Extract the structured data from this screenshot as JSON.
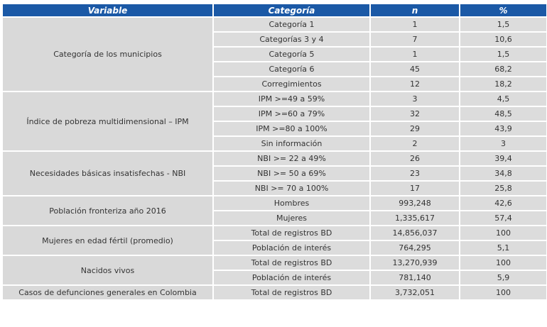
{
  "headers": [
    "Variable",
    "Categoría",
    "n",
    "%"
  ],
  "groups": [
    {
      "variable": "Categoría de los municipios",
      "rows": [
        {
          "categoria": "Categoría 1",
          "n": "1",
          "pct": "1,5"
        },
        {
          "categoria": "Categorías 3 y 4",
          "n": "7",
          "pct": "10,6"
        },
        {
          "categoria": "Categoría 5",
          "n": "1",
          "pct": "1,5"
        },
        {
          "categoria": "Categoría 6",
          "n": "45",
          "pct": "68,2"
        },
        {
          "categoria": "Corregimientos",
          "n": "12",
          "pct": "18,2"
        }
      ]
    },
    {
      "variable": "Índice de pobreza multidimensional – IPM",
      "rows": [
        {
          "categoria": "IPM >=49 a 59%",
          "n": "3",
          "pct": "4,5"
        },
        {
          "categoria": "IPM >=60 a 79%",
          "n": "32",
          "pct": "48,5"
        },
        {
          "categoria": "IPM >=80 a 100%",
          "n": "29",
          "pct": "43,9"
        },
        {
          "categoria": "Sin información",
          "n": "2",
          "pct": "3"
        }
      ]
    },
    {
      "variable": "Necesidades básicas insatisfechas - NBI",
      "rows": [
        {
          "categoria": "NBI >= 22 a 49%",
          "n": "26",
          "pct": "39,4"
        },
        {
          "categoria": "NBI >= 50 a 69%",
          "n": "23",
          "pct": "34,8"
        },
        {
          "categoria": "NBI >= 70 a 100%",
          "n": "17",
          "pct": "25,8"
        }
      ]
    },
    {
      "variable": "Población fronteriza año 2016",
      "rows": [
        {
          "categoria": "Hombres",
          "n": "993,248",
          "pct": "42,6"
        },
        {
          "categoria": "Mujeres",
          "n": "1,335,617",
          "pct": "57,4"
        }
      ]
    },
    {
      "variable": "Mujeres en edad fértil (promedio)",
      "rows": [
        {
          "categoria": "Total de registros BD",
          "n": "14,856,037",
          "pct": "100"
        },
        {
          "categoria": "Población de interés",
          "n": "764,295",
          "pct": "5,1"
        }
      ]
    },
    {
      "variable": "Nacidos vivos",
      "rows": [
        {
          "categoria": "Total de registros BD",
          "n": "13,270,939",
          "pct": "100"
        },
        {
          "categoria": "Población de interés",
          "n": "781,140",
          "pct": "5,9"
        }
      ]
    },
    {
      "variable": "Casos de defunciones generales en Colombia",
      "rows": [
        {
          "categoria": "Total de registros BD",
          "n": "3,732,051",
          "pct": "100"
        }
      ]
    }
  ]
}
